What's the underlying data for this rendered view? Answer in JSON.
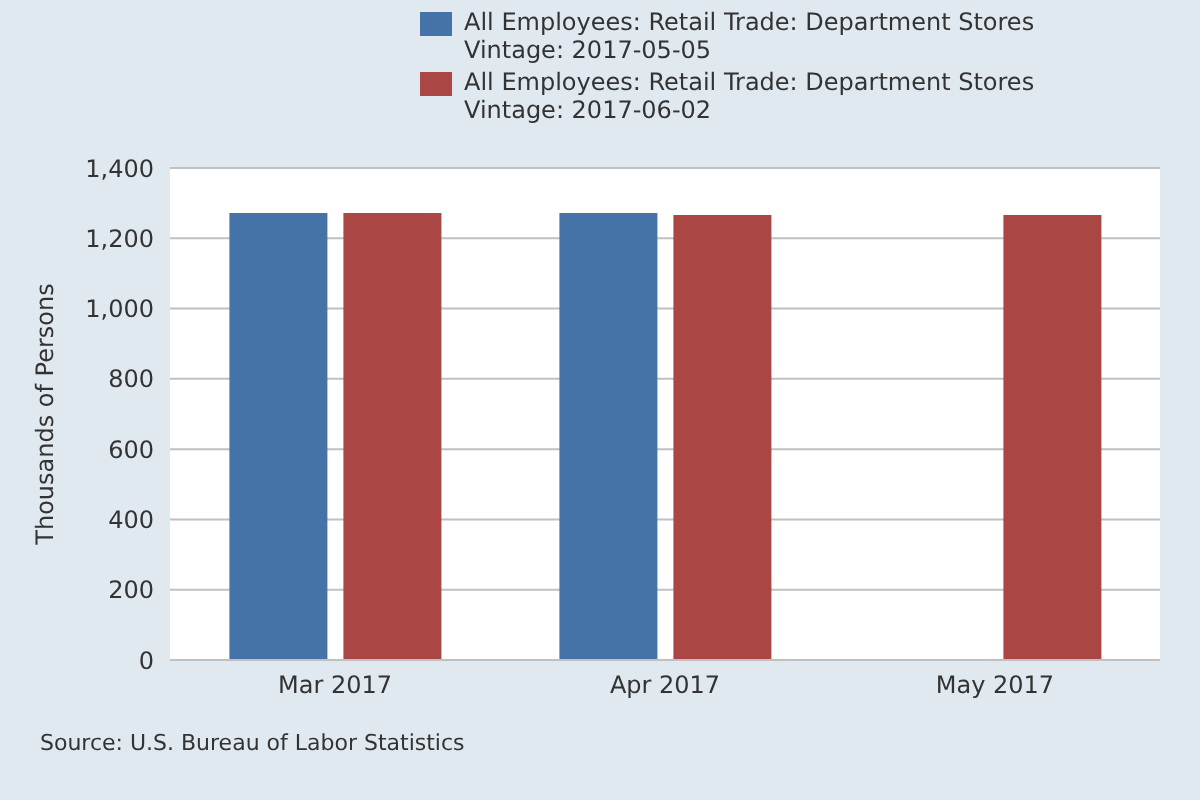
{
  "chart_data": {
    "type": "bar",
    "ylabel": "Thousands of Persons",
    "categories": [
      "Mar 2017",
      "Apr 2017",
      "May 2017"
    ],
    "series": [
      {
        "name": "All Employees: Retail Trade: Department Stores Vintage: 2017-05-05",
        "color": "#4572a7",
        "values": [
          1272,
          1272,
          null
        ]
      },
      {
        "name": "All Employees: Retail Trade: Department Stores Vintage: 2017-06-02",
        "color": "#aa4643",
        "values": [
          1272,
          1266,
          1266
        ]
      }
    ],
    "ylim": [
      0,
      1400
    ],
    "yticks": [
      0,
      200,
      400,
      600,
      800,
      {
        "value": 1000,
        "label": "1,000"
      },
      {
        "value": 1200,
        "label": "1,200"
      },
      {
        "value": 1400,
        "label": "1,400"
      }
    ],
    "grid": "y",
    "legend": "top",
    "annotations": [
      "Source: U.S. Bureau of Labor Statistics"
    ]
  }
}
